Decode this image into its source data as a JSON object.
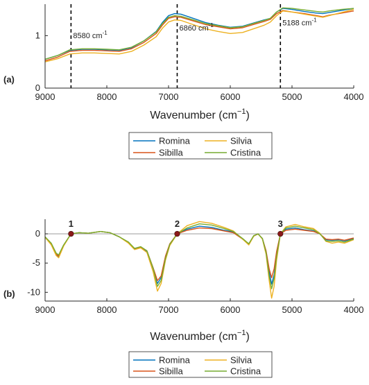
{
  "chart_data": [
    {
      "panel": "(a)",
      "type": "line",
      "xlabel": "Wavenumber (cm",
      "xlabel_sup": "−1",
      "xlabel_end": ")",
      "xlim": [
        9000,
        4000
      ],
      "ylim": [
        0,
        1.6
      ],
      "x_ticks": [
        "9000",
        "8000",
        "7000",
        "6000",
        "5000",
        "4000"
      ],
      "y_ticks": [
        "0",
        "1"
      ],
      "annotations": [
        {
          "x": 8580,
          "label": "8580 cm",
          "sup": "-1"
        },
        {
          "x": 6860,
          "label": "6860 cm",
          "sup": "-1"
        },
        {
          "x": 5188,
          "label": "5188 cm",
          "sup": "-1"
        }
      ],
      "x": [
        9000,
        8800,
        8600,
        8400,
        8200,
        8000,
        7800,
        7600,
        7400,
        7200,
        7100,
        7000,
        6900,
        6800,
        6600,
        6400,
        6200,
        6000,
        5800,
        5600,
        5450,
        5350,
        5250,
        5150,
        5000,
        4800,
        4600,
        4500,
        4400,
        4200,
        4000
      ],
      "series": [
        {
          "name": "Romina",
          "color": "#0072BD",
          "values": [
            0.55,
            0.62,
            0.72,
            0.74,
            0.74,
            0.73,
            0.72,
            0.77,
            0.9,
            1.08,
            1.25,
            1.38,
            1.42,
            1.41,
            1.33,
            1.25,
            1.2,
            1.16,
            1.18,
            1.25,
            1.3,
            1.33,
            1.45,
            1.52,
            1.5,
            1.46,
            1.43,
            1.42,
            1.44,
            1.48,
            1.52
          ]
        },
        {
          "name": "Sibilla",
          "color": "#D95319",
          "values": [
            0.52,
            0.59,
            0.7,
            0.72,
            0.72,
            0.71,
            0.7,
            0.75,
            0.87,
            1.04,
            1.2,
            1.33,
            1.36,
            1.35,
            1.28,
            1.21,
            1.17,
            1.13,
            1.15,
            1.22,
            1.27,
            1.31,
            1.42,
            1.48,
            1.45,
            1.42,
            1.38,
            1.36,
            1.39,
            1.43,
            1.47
          ]
        },
        {
          "name": "Silvia",
          "color": "#EDB120",
          "values": [
            0.5,
            0.56,
            0.65,
            0.67,
            0.67,
            0.66,
            0.65,
            0.7,
            0.82,
            0.98,
            1.14,
            1.26,
            1.3,
            1.29,
            1.21,
            1.13,
            1.08,
            1.04,
            1.06,
            1.14,
            1.2,
            1.26,
            1.38,
            1.47,
            1.45,
            1.41,
            1.37,
            1.35,
            1.38,
            1.44,
            1.5
          ]
        },
        {
          "name": "Cristina",
          "color": "#77AC30",
          "values": [
            0.55,
            0.62,
            0.73,
            0.75,
            0.75,
            0.74,
            0.73,
            0.78,
            0.9,
            1.07,
            1.23,
            1.35,
            1.38,
            1.37,
            1.3,
            1.23,
            1.19,
            1.15,
            1.17,
            1.24,
            1.29,
            1.33,
            1.45,
            1.53,
            1.52,
            1.49,
            1.46,
            1.45,
            1.47,
            1.5,
            1.52
          ]
        }
      ],
      "legend": [
        "Romina",
        "Silvia",
        "Sibilla",
        "Cristina"
      ],
      "legend_position": "below"
    },
    {
      "panel": "(b)",
      "type": "line",
      "xlabel": "Wavenumber (cm",
      "xlabel_sup": "−1",
      "xlabel_end": ")",
      "xlim": [
        9000,
        4000
      ],
      "ylim": [
        -11.5,
        2.5
      ],
      "x_ticks": [
        "9000",
        "8000",
        "7000",
        "6000",
        "5000",
        "4000"
      ],
      "y_ticks": [
        "0",
        "-5",
        "-10"
      ],
      "y_tick_values": [
        0,
        -5,
        -10
      ],
      "markers": [
        {
          "x": 8580,
          "label": "1"
        },
        {
          "x": 6860,
          "label": "2"
        },
        {
          "x": 5188,
          "label": "3"
        }
      ],
      "x": [
        9000,
        8900,
        8820,
        8780,
        8700,
        8580,
        8450,
        8300,
        8100,
        7950,
        7800,
        7650,
        7550,
        7450,
        7350,
        7250,
        7180,
        7120,
        7050,
        6980,
        6860,
        6700,
        6500,
        6300,
        6100,
        5950,
        5800,
        5700,
        5620,
        5550,
        5480,
        5420,
        5370,
        5330,
        5290,
        5250,
        5188,
        5100,
        4950,
        4800,
        4650,
        4550,
        4450,
        4350,
        4250,
        4150,
        4000
      ],
      "series": [
        {
          "name": "Romina",
          "color": "#0072BD",
          "values": [
            -0.6,
            -1.8,
            -3.6,
            -3.9,
            -2.0,
            0,
            0.2,
            0.1,
            0.4,
            0.2,
            -0.5,
            -1.5,
            -2.6,
            -2.3,
            -3.0,
            -6.0,
            -8.5,
            -7.5,
            -4.0,
            -1.8,
            0,
            0.8,
            1.3,
            1.1,
            0.6,
            0.3,
            -0.9,
            -1.8,
            -0.4,
            0.0,
            -0.8,
            -3.0,
            -6.5,
            -8.6,
            -7.0,
            -3.5,
            0,
            0.8,
            1.0,
            0.7,
            0.5,
            0.0,
            -1.0,
            -1.1,
            -1.0,
            -1.2,
            -0.8
          ]
        },
        {
          "name": "Sibilla",
          "color": "#D95319",
          "values": [
            -0.6,
            -1.7,
            -3.5,
            -3.8,
            -2.0,
            0,
            0.2,
            0.1,
            0.4,
            0.2,
            -0.5,
            -1.5,
            -2.5,
            -2.3,
            -2.9,
            -5.8,
            -8.0,
            -7.2,
            -3.8,
            -1.7,
            0,
            0.6,
            1.0,
            0.9,
            0.5,
            0.2,
            -0.9,
            -1.7,
            -0.4,
            0.0,
            -0.8,
            -2.9,
            -6.0,
            -7.5,
            -6.0,
            -3.0,
            0,
            0.6,
            0.8,
            0.6,
            0.4,
            0.0,
            -0.9,
            -1.0,
            -0.9,
            -1.1,
            -0.7
          ]
        },
        {
          "name": "Silvia",
          "color": "#EDB120",
          "values": [
            -0.6,
            -1.9,
            -3.7,
            -4.1,
            -2.1,
            0,
            0.2,
            0.1,
            0.4,
            0.2,
            -0.5,
            -1.6,
            -2.7,
            -2.4,
            -3.2,
            -6.5,
            -9.8,
            -8.5,
            -4.5,
            -2.0,
            0,
            1.4,
            2.1,
            1.8,
            1.1,
            0.5,
            -0.9,
            -1.9,
            -0.4,
            0.0,
            -0.9,
            -3.5,
            -8.0,
            -11.0,
            -9.0,
            -4.5,
            0,
            1.2,
            1.6,
            1.2,
            0.9,
            0.1,
            -1.3,
            -1.6,
            -1.4,
            -1.6,
            -1.0
          ]
        },
        {
          "name": "Cristina",
          "color": "#77AC30",
          "values": [
            -0.5,
            -1.6,
            -3.3,
            -3.6,
            -1.9,
            0,
            0.2,
            0.1,
            0.4,
            0.2,
            -0.5,
            -1.4,
            -2.5,
            -2.2,
            -2.9,
            -5.9,
            -9.0,
            -8.0,
            -4.2,
            -1.8,
            0,
            1.0,
            1.7,
            1.5,
            0.9,
            0.4,
            -0.8,
            -1.7,
            -0.3,
            0.0,
            -0.8,
            -3.2,
            -7.2,
            -9.4,
            -7.6,
            -3.8,
            0,
            1.0,
            1.3,
            1.0,
            0.7,
            0.0,
            -1.2,
            -1.3,
            -1.2,
            -1.4,
            -0.9
          ]
        }
      ],
      "legend": [
        "Romina",
        "Silvia",
        "Sibilla",
        "Cristina"
      ],
      "legend_position": "below"
    }
  ]
}
